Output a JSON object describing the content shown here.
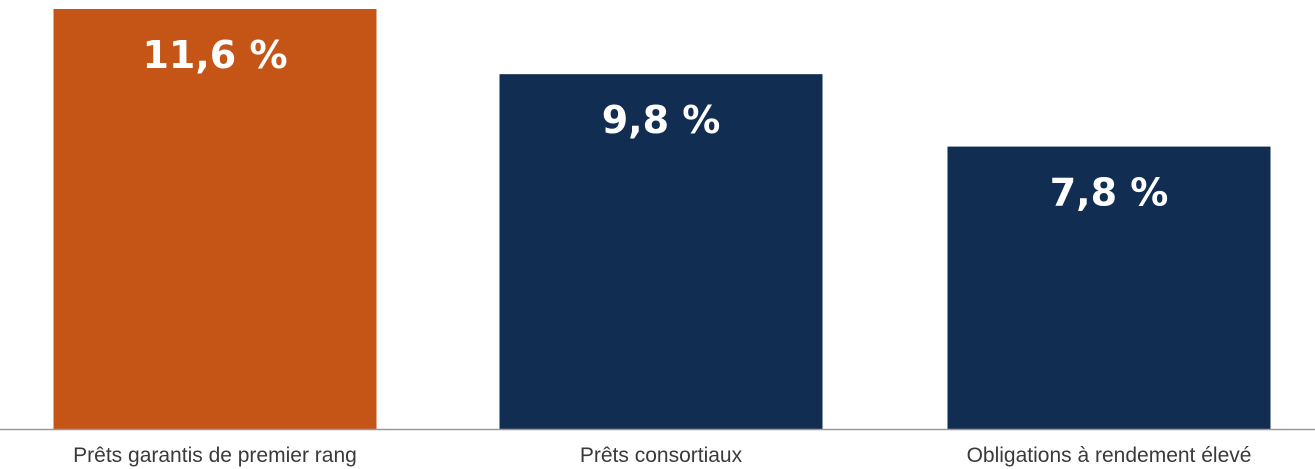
{
  "chart_data": {
    "type": "bar",
    "categories": [
      "Prêts garantis de premier rang",
      "Prêts consortiaux",
      "Obligations à rendement élevé"
    ],
    "values": [
      11.6,
      9.8,
      7.8
    ],
    "data_labels": [
      "11,6 %",
      "9,8 %",
      "7,8 %"
    ],
    "colors": [
      "#C55417",
      "#112D52",
      "#112D52"
    ],
    "axis_line_color": "#999999",
    "title": "",
    "xlabel": "",
    "ylabel": "",
    "ylim": [
      0,
      11.6
    ],
    "grid": false,
    "legend": "none"
  }
}
